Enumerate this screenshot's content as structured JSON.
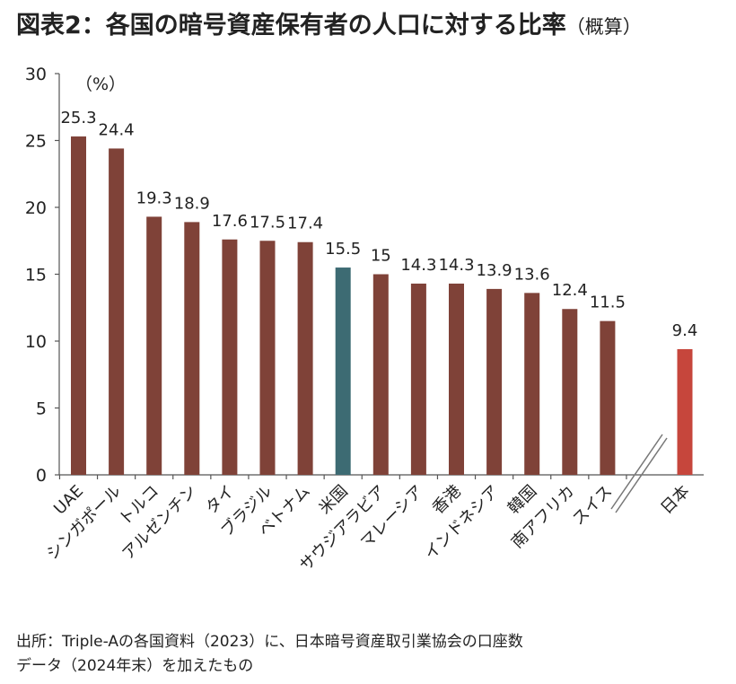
{
  "title": "図表2：各国の暗号資産保有者の人口に対する比率",
  "subtitle": "（概算）",
  "unit_label": "（%）",
  "source_line1": "出所：Triple-Aの各国資料（2023）に、日本暗号資産取引業協会の口座数",
  "source_line2": "データ（2024年末）を加えたもの",
  "colors": {
    "default_bar": "#7f4238",
    "us_bar": "#3d6b73",
    "japan_bar": "#c6463c",
    "axis": "#555555"
  },
  "chart_data": {
    "type": "bar",
    "categories": [
      "UAE",
      "シンガポール",
      "トルコ",
      "アルゼンチン",
      "タイ",
      "ブラジル",
      "ベトナム",
      "米国",
      "サウジアラビア",
      "マレーシア",
      "香港",
      "インドネシア",
      "韓国",
      "南アフリカ",
      "スイス",
      "日本"
    ],
    "values": [
      25.3,
      24.4,
      19.3,
      18.9,
      17.6,
      17.5,
      17.4,
      15.5,
      15,
      14.3,
      14.3,
      13.9,
      13.6,
      12.4,
      11.5,
      9.4
    ],
    "value_labels": [
      "25.3",
      "24.4",
      "19.3",
      "18.9",
      "17.6",
      "17.5",
      "17.4",
      "15.5",
      "15",
      "14.3",
      "14.3",
      "13.9",
      "13.6",
      "12.4",
      "11.5",
      "9.4"
    ],
    "highlight": {
      "米国": "us_bar",
      "日本": "japan_bar"
    },
    "axis_break_before": "日本",
    "ylim": [
      0,
      30
    ],
    "yticks": [
      0,
      5,
      10,
      15,
      20,
      25,
      30
    ],
    "grid": false,
    "xlabel": "",
    "ylabel": ""
  }
}
